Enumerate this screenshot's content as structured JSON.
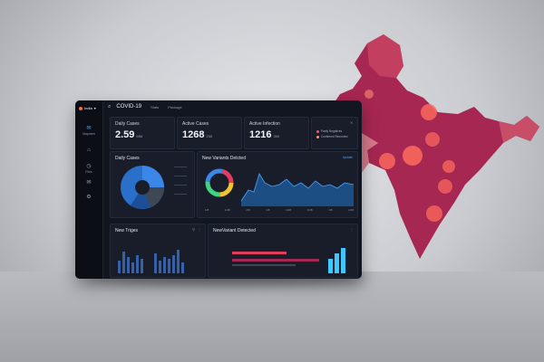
{
  "app": {
    "brand": "India",
    "title": "COVID-19",
    "tabs": [
      "Stats",
      "Package"
    ]
  },
  "sidebar": {
    "items": [
      {
        "icon": "mail-icon",
        "label": "Mapview",
        "active": true
      },
      {
        "icon": "home-icon",
        "label": ""
      },
      {
        "icon": "clock-icon",
        "label": "Files"
      },
      {
        "icon": "mail-icon",
        "label": ""
      },
      {
        "icon": "settings-icon",
        "label": ""
      }
    ]
  },
  "stats": [
    {
      "label": "Daily Cases",
      "value": "2.59",
      "unit": "MM"
    },
    {
      "label": "Active Cases",
      "value": "1268",
      "unit": "230"
    },
    {
      "label": "Active Infection",
      "value": "1216",
      "unit": "300"
    }
  ],
  "legend": {
    "items": [
      {
        "label": "Partly Negatives",
        "color": "#e85a73"
      },
      {
        "label": "Confirmed Recorded",
        "color": "#ff9a6b"
      }
    ]
  },
  "daily_panel": {
    "title": "Daily Cases"
  },
  "variants_panel": {
    "title": "New Variants Detcted",
    "action": "Update"
  },
  "area_axis": [
    "1/8",
    "1/48",
    "2/8",
    "1/8",
    "1/48",
    "1/48",
    "1/8",
    "1/48"
  ],
  "new_triages": {
    "title": "New Triges"
  },
  "variant_detected": {
    "title": "NewVariant Detected"
  },
  "colors": {
    "accent": "#4aa3ff",
    "map": "#a62751",
    "map_light": "#d2586c",
    "hot": "#ff6b5e"
  }
}
